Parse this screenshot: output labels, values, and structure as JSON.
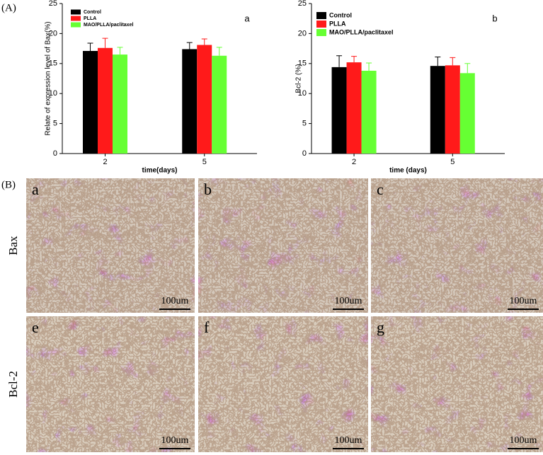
{
  "figure_labels": {
    "panel_a": "(A)",
    "panel_b": "(B)"
  },
  "chart_data": [
    {
      "type": "bar",
      "annotation": "a",
      "ylabel": "Relate of expression level of Bax(%)",
      "xlabel": "time(days)",
      "categories": [
        "2",
        "5"
      ],
      "series": [
        {
          "name": "Control",
          "color": "#000000",
          "values": [
            17.1,
            17.4
          ],
          "errors": [
            1.3,
            1.1
          ]
        },
        {
          "name": "PLLA",
          "color": "#ff1a1a",
          "values": [
            17.6,
            18.1
          ],
          "errors": [
            1.6,
            1.0
          ]
        },
        {
          "name": "MAO/PLLA/paclitaxel",
          "color": "#66ff33",
          "values": [
            16.5,
            16.3
          ],
          "errors": [
            1.2,
            1.4
          ]
        }
      ],
      "ylim": [
        0,
        25
      ],
      "yticks": [
        0,
        5,
        10,
        15,
        20,
        25
      ]
    },
    {
      "type": "bar",
      "annotation": "b",
      "ylabel": "Bcl-2 (%)",
      "xlabel": "time (days)",
      "categories": [
        "2",
        "5"
      ],
      "series": [
        {
          "name": "Control",
          "color": "#000000",
          "values": [
            14.4,
            14.6
          ],
          "errors": [
            1.9,
            1.5
          ]
        },
        {
          "name": "PLLA",
          "color": "#ff1a1a",
          "values": [
            15.2,
            14.7
          ],
          "errors": [
            1.0,
            1.3
          ]
        },
        {
          "name": "MAO/PLLA/paclitaxel",
          "color": "#66ff33",
          "values": [
            13.8,
            13.4
          ],
          "errors": [
            1.3,
            1.6
          ]
        }
      ],
      "ylim": [
        0,
        25
      ],
      "yticks": [
        0,
        5,
        10,
        15,
        20,
        25
      ]
    }
  ],
  "micrographs": {
    "rows": [
      {
        "label": "Bax",
        "panels": [
          {
            "letter": "a",
            "scale": "100um"
          },
          {
            "letter": "b",
            "scale": "100um"
          },
          {
            "letter": "c",
            "scale": "100um"
          }
        ]
      },
      {
        "label": "Bcl-2",
        "panels": [
          {
            "letter": "e",
            "scale": "100um"
          },
          {
            "letter": "f",
            "scale": "100um"
          },
          {
            "letter": "g",
            "scale": "100um"
          }
        ]
      }
    ]
  }
}
